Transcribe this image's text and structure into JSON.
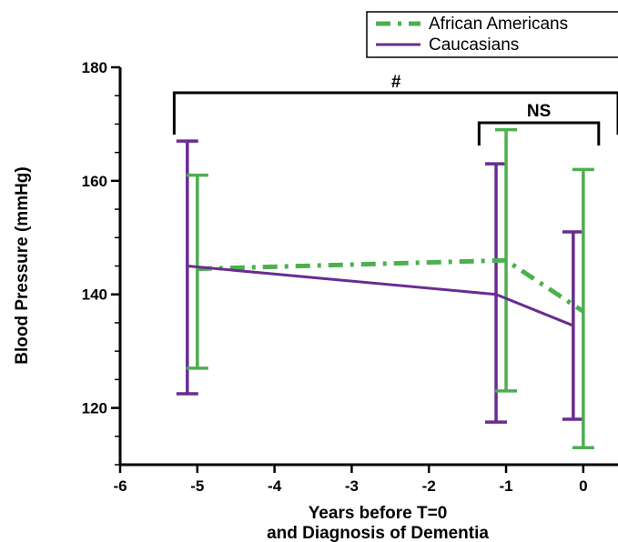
{
  "chart_data": {
    "type": "line",
    "title": "",
    "xlabel_line1": "Years before T=0",
    "xlabel_line2": "and Diagnosis of Dementia",
    "ylabel": "Blood Pressure (mmHg)",
    "xlim": [
      -6,
      0.45
    ],
    "ylim": [
      110,
      180
    ],
    "x_ticks": [
      -6,
      -5,
      -4,
      -3,
      -2,
      -1,
      0
    ],
    "x_tick_labels": [
      "-6",
      "-5",
      "-4",
      "-3",
      "-2",
      "-1",
      "0"
    ],
    "y_ticks": [
      120,
      140,
      160,
      180
    ],
    "y_tick_labels": [
      "120",
      "140",
      "160",
      "180"
    ],
    "grid": false,
    "legend_position": "top-right",
    "series": [
      {
        "name": "African Americans",
        "color": "#4caf50",
        "line_style": "dash-dot",
        "x": [
          -5,
          -1,
          0
        ],
        "y": [
          144.5,
          146,
          137
        ],
        "error_low": [
          127,
          123,
          113
        ],
        "error_high": [
          161,
          169,
          162
        ]
      },
      {
        "name": "Caucasians",
        "color": "#6a2c91",
        "line_style": "solid",
        "x": [
          -5,
          -1,
          0
        ],
        "y": [
          145,
          140,
          134.5
        ],
        "error_low": [
          122.5,
          117.5,
          118
        ],
        "error_high": [
          167,
          163,
          151
        ]
      }
    ],
    "annotations": [
      {
        "text": "#",
        "from_x": -5.3,
        "to_x": 0.45
      },
      {
        "text": "NS",
        "from_x": -1.35,
        "to_x": 0.2
      }
    ]
  }
}
